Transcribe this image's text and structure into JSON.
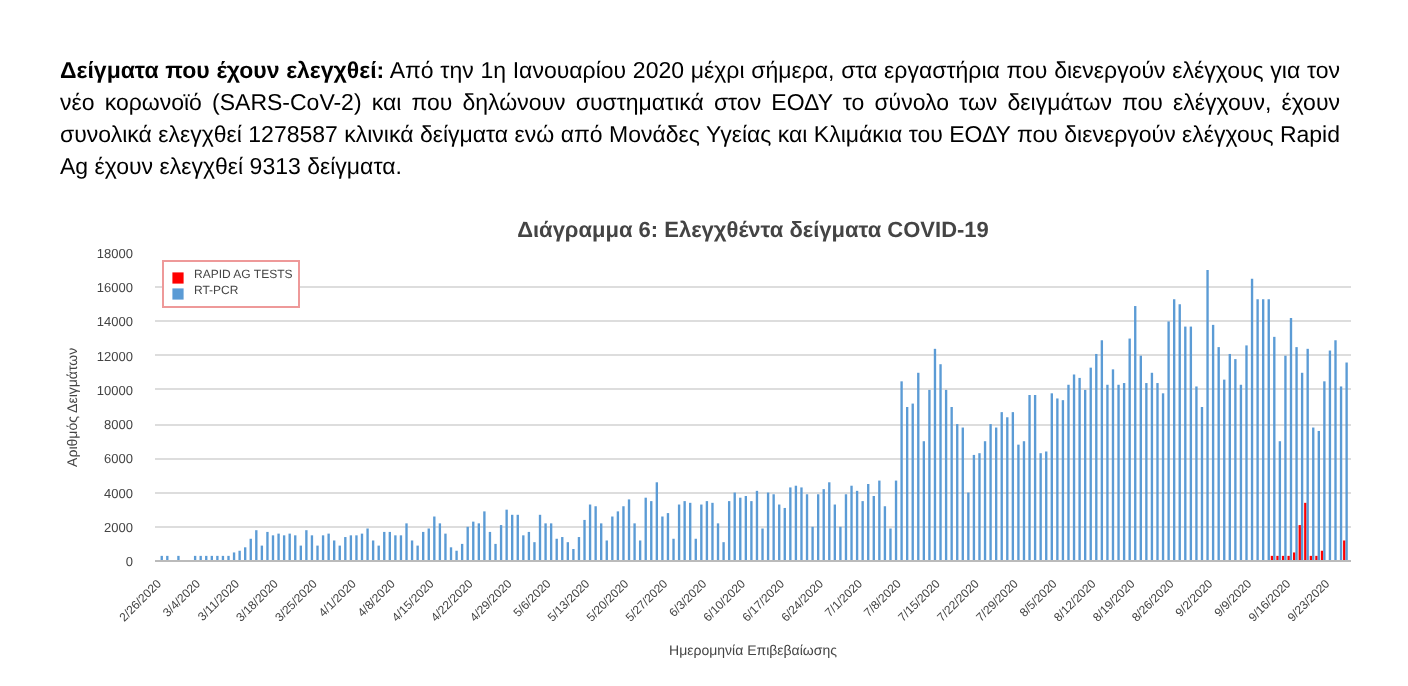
{
  "chart_data": {
    "type": "bar",
    "title": "Διάγραμμα 6: Ελεγχθέντα δείγματα COVID-19",
    "xlabel": "Ημερομηνία Επιβεβαίωσης",
    "ylabel": "Αριθμός Δειγμάτων",
    "annotations": [
      "Δείγματα που έχουν ελεγχθεί:",
      "Από την 1η Ιανουαρίου 2020 μέχρι σήμερα, στα εργαστήρια που διενεργούν ελέγχους για τον νέο κορωνοϊό (SARS-CoV-2) και που δηλώνουν συστηματικά στον ΕΟΔΥ το σύνολο των δειγμάτων που ελέγχουν, έχουν συνολικά ελεγχθεί 1278587 κλινικά δείγματα ενώ από Μονάδες Υγείας και Κλιμάκια του ΕΟΔΥ που διενεργούν ελέγχους Rapid Ag έχουν ελεγχθεί 9313 δείγματα."
    ],
    "categories": [
      "2/26/2020",
      null,
      null,
      null,
      null,
      null,
      null,
      "3/4/2020",
      null,
      null,
      null,
      null,
      null,
      null,
      "3/11/2020",
      null,
      null,
      null,
      null,
      null,
      null,
      "3/18/2020",
      null,
      null,
      null,
      null,
      null,
      null,
      "3/25/2020",
      null,
      null,
      null,
      null,
      null,
      null,
      "4/1/2020",
      null,
      null,
      null,
      null,
      null,
      null,
      "4/8/2020",
      null,
      null,
      null,
      null,
      null,
      null,
      "4/15/2020",
      null,
      null,
      null,
      null,
      null,
      null,
      "4/22/2020",
      null,
      null,
      null,
      null,
      null,
      null,
      "4/29/2020",
      null,
      null,
      null,
      null,
      null,
      null,
      "5/6/2020",
      null,
      null,
      null,
      null,
      null,
      null,
      "5/13/2020",
      null,
      null,
      null,
      null,
      null,
      null,
      "5/20/2020",
      null,
      null,
      null,
      null,
      null,
      null,
      "5/27/2020",
      null,
      null,
      null,
      null,
      null,
      null,
      "6/3/2020",
      null,
      null,
      null,
      null,
      null,
      null,
      "6/10/2020",
      null,
      null,
      null,
      null,
      null,
      null,
      "6/17/2020",
      null,
      null,
      null,
      null,
      null,
      null,
      "6/24/2020",
      null,
      null,
      null,
      null,
      null,
      null,
      "7/1/2020",
      null,
      null,
      null,
      null,
      null,
      null,
      "7/8/2020",
      null,
      null,
      null,
      null,
      null,
      null,
      "7/15/2020",
      null,
      null,
      null,
      null,
      null,
      null,
      "7/22/2020",
      null,
      null,
      null,
      null,
      null,
      null,
      "7/29/2020",
      null,
      null,
      null,
      null,
      null,
      null,
      "8/5/2020",
      null,
      null,
      null,
      null,
      null,
      null,
      "8/12/2020",
      null,
      null,
      null,
      null,
      null,
      null,
      "8/19/2020",
      null,
      null,
      null,
      null,
      null,
      null,
      "8/26/2020",
      null,
      null,
      null,
      null,
      null,
      null,
      "9/2/2020",
      null,
      null,
      null,
      null,
      null,
      null,
      "9/9/2020",
      null,
      null,
      null,
      null,
      null,
      null,
      "9/16/2020",
      null,
      null,
      null,
      null,
      null,
      null,
      "9/23/2020",
      null,
      null,
      null
    ],
    "ylim": [
      0,
      18000
    ],
    "yticks": [
      0,
      2000,
      4000,
      6000,
      8000,
      10000,
      12000,
      14000,
      16000,
      18000
    ],
    "grid": "y",
    "legend": "top left",
    "series": [
      {
        "name": "RAPID AG TESTS",
        "color": "#ff0000",
        "values": [
          null,
          null,
          null,
          null,
          null,
          null,
          null,
          null,
          null,
          null,
          null,
          null,
          null,
          null,
          null,
          null,
          null,
          null,
          null,
          null,
          null,
          null,
          null,
          null,
          null,
          null,
          null,
          null,
          null,
          null,
          null,
          null,
          null,
          null,
          null,
          null,
          null,
          null,
          null,
          null,
          null,
          null,
          null,
          null,
          null,
          null,
          null,
          null,
          null,
          null,
          null,
          null,
          null,
          null,
          null,
          null,
          null,
          null,
          null,
          null,
          null,
          null,
          null,
          null,
          null,
          null,
          null,
          null,
          null,
          null,
          null,
          null,
          null,
          null,
          null,
          null,
          null,
          null,
          null,
          null,
          null,
          null,
          null,
          null,
          null,
          null,
          null,
          null,
          null,
          null,
          null,
          null,
          null,
          null,
          null,
          null,
          null,
          null,
          null,
          null,
          null,
          null,
          null,
          null,
          null,
          null,
          null,
          null,
          null,
          null,
          null,
          null,
          null,
          null,
          null,
          null,
          null,
          null,
          null,
          null,
          null,
          null,
          null,
          null,
          null,
          null,
          null,
          null,
          null,
          null,
          null,
          null,
          null,
          null,
          null,
          null,
          null,
          null,
          null,
          null,
          null,
          null,
          null,
          null,
          null,
          null,
          null,
          null,
          null,
          null,
          null,
          null,
          null,
          null,
          null,
          null,
          null,
          null,
          null,
          null,
          null,
          null,
          null,
          null,
          null,
          null,
          null,
          null,
          null,
          null,
          null,
          null,
          null,
          null,
          null,
          null,
          null,
          null,
          null,
          null,
          null,
          null,
          null,
          null,
          null,
          null,
          null,
          null,
          null,
          null,
          null,
          null,
          null,
          null,
          null,
          null,
          null,
          null,
          null,
          null,
          300,
          300,
          300,
          300,
          500,
          2100,
          3400,
          300,
          300,
          600,
          null,
          null,
          null,
          1200
        ]
      },
      {
        "name": "RT-PCR",
        "color": "#5b9bd5",
        "values": [
          300,
          300,
          null,
          300,
          null,
          null,
          300,
          300,
          300,
          300,
          300,
          300,
          300,
          500,
          600,
          800,
          1300,
          1800,
          900,
          1700,
          1500,
          1600,
          1500,
          1600,
          1500,
          900,
          1800,
          1500,
          900,
          1500,
          1600,
          1200,
          900,
          1400,
          1500,
          1500,
          1600,
          1900,
          1200,
          900,
          1700,
          1700,
          1500,
          1500,
          2200,
          1200,
          900,
          1700,
          1900,
          2600,
          2200,
          1600,
          800,
          600,
          1000,
          2000,
          2300,
          2200,
          2900,
          1700,
          1000,
          2100,
          3000,
          2700,
          2700,
          1500,
          1700,
          1100,
          2700,
          2200,
          2200,
          1300,
          1400,
          1100,
          700,
          1400,
          2400,
          3300,
          3200,
          2200,
          1200,
          2600,
          2900,
          3200,
          3600,
          2200,
          1200,
          3700,
          3500,
          4600,
          2600,
          2800,
          1300,
          3300,
          3500,
          3400,
          1300,
          3300,
          3500,
          3400,
          2200,
          1100,
          3500,
          4000,
          3700,
          3800,
          3500,
          4100,
          1900,
          4000,
          3900,
          3300,
          3100,
          4300,
          4400,
          4300,
          3900,
          2000,
          3900,
          4200,
          4600,
          3300,
          2000,
          3900,
          4400,
          4100,
          3500,
          4500,
          3800,
          4700,
          3200,
          1900,
          4700,
          10500,
          9000,
          9200,
          11000,
          7000,
          10000,
          12400,
          11500,
          10000,
          9000,
          8000,
          7800,
          4000,
          6200,
          6300,
          7000,
          8000,
          7800,
          8700,
          8400,
          8700,
          6800,
          7000,
          9700,
          9700,
          6300,
          6400,
          9800,
          9500,
          9400,
          10300,
          10900,
          10700,
          10000,
          11300,
          12100,
          12900,
          10300,
          11200,
          10300,
          10400,
          13000,
          14900,
          12000,
          10400,
          11000,
          10400,
          9800,
          14000,
          15300,
          15000,
          13700,
          13700,
          10200,
          9000,
          17000,
          13800,
          12500,
          10600,
          12100,
          11800,
          10300,
          12600,
          16500,
          15300,
          15300,
          15300,
          13100,
          7000,
          12000,
          14200,
          12500,
          11000,
          12400,
          7800,
          7600,
          10500,
          12300,
          12900,
          10200,
          11600
        ]
      }
    ]
  }
}
